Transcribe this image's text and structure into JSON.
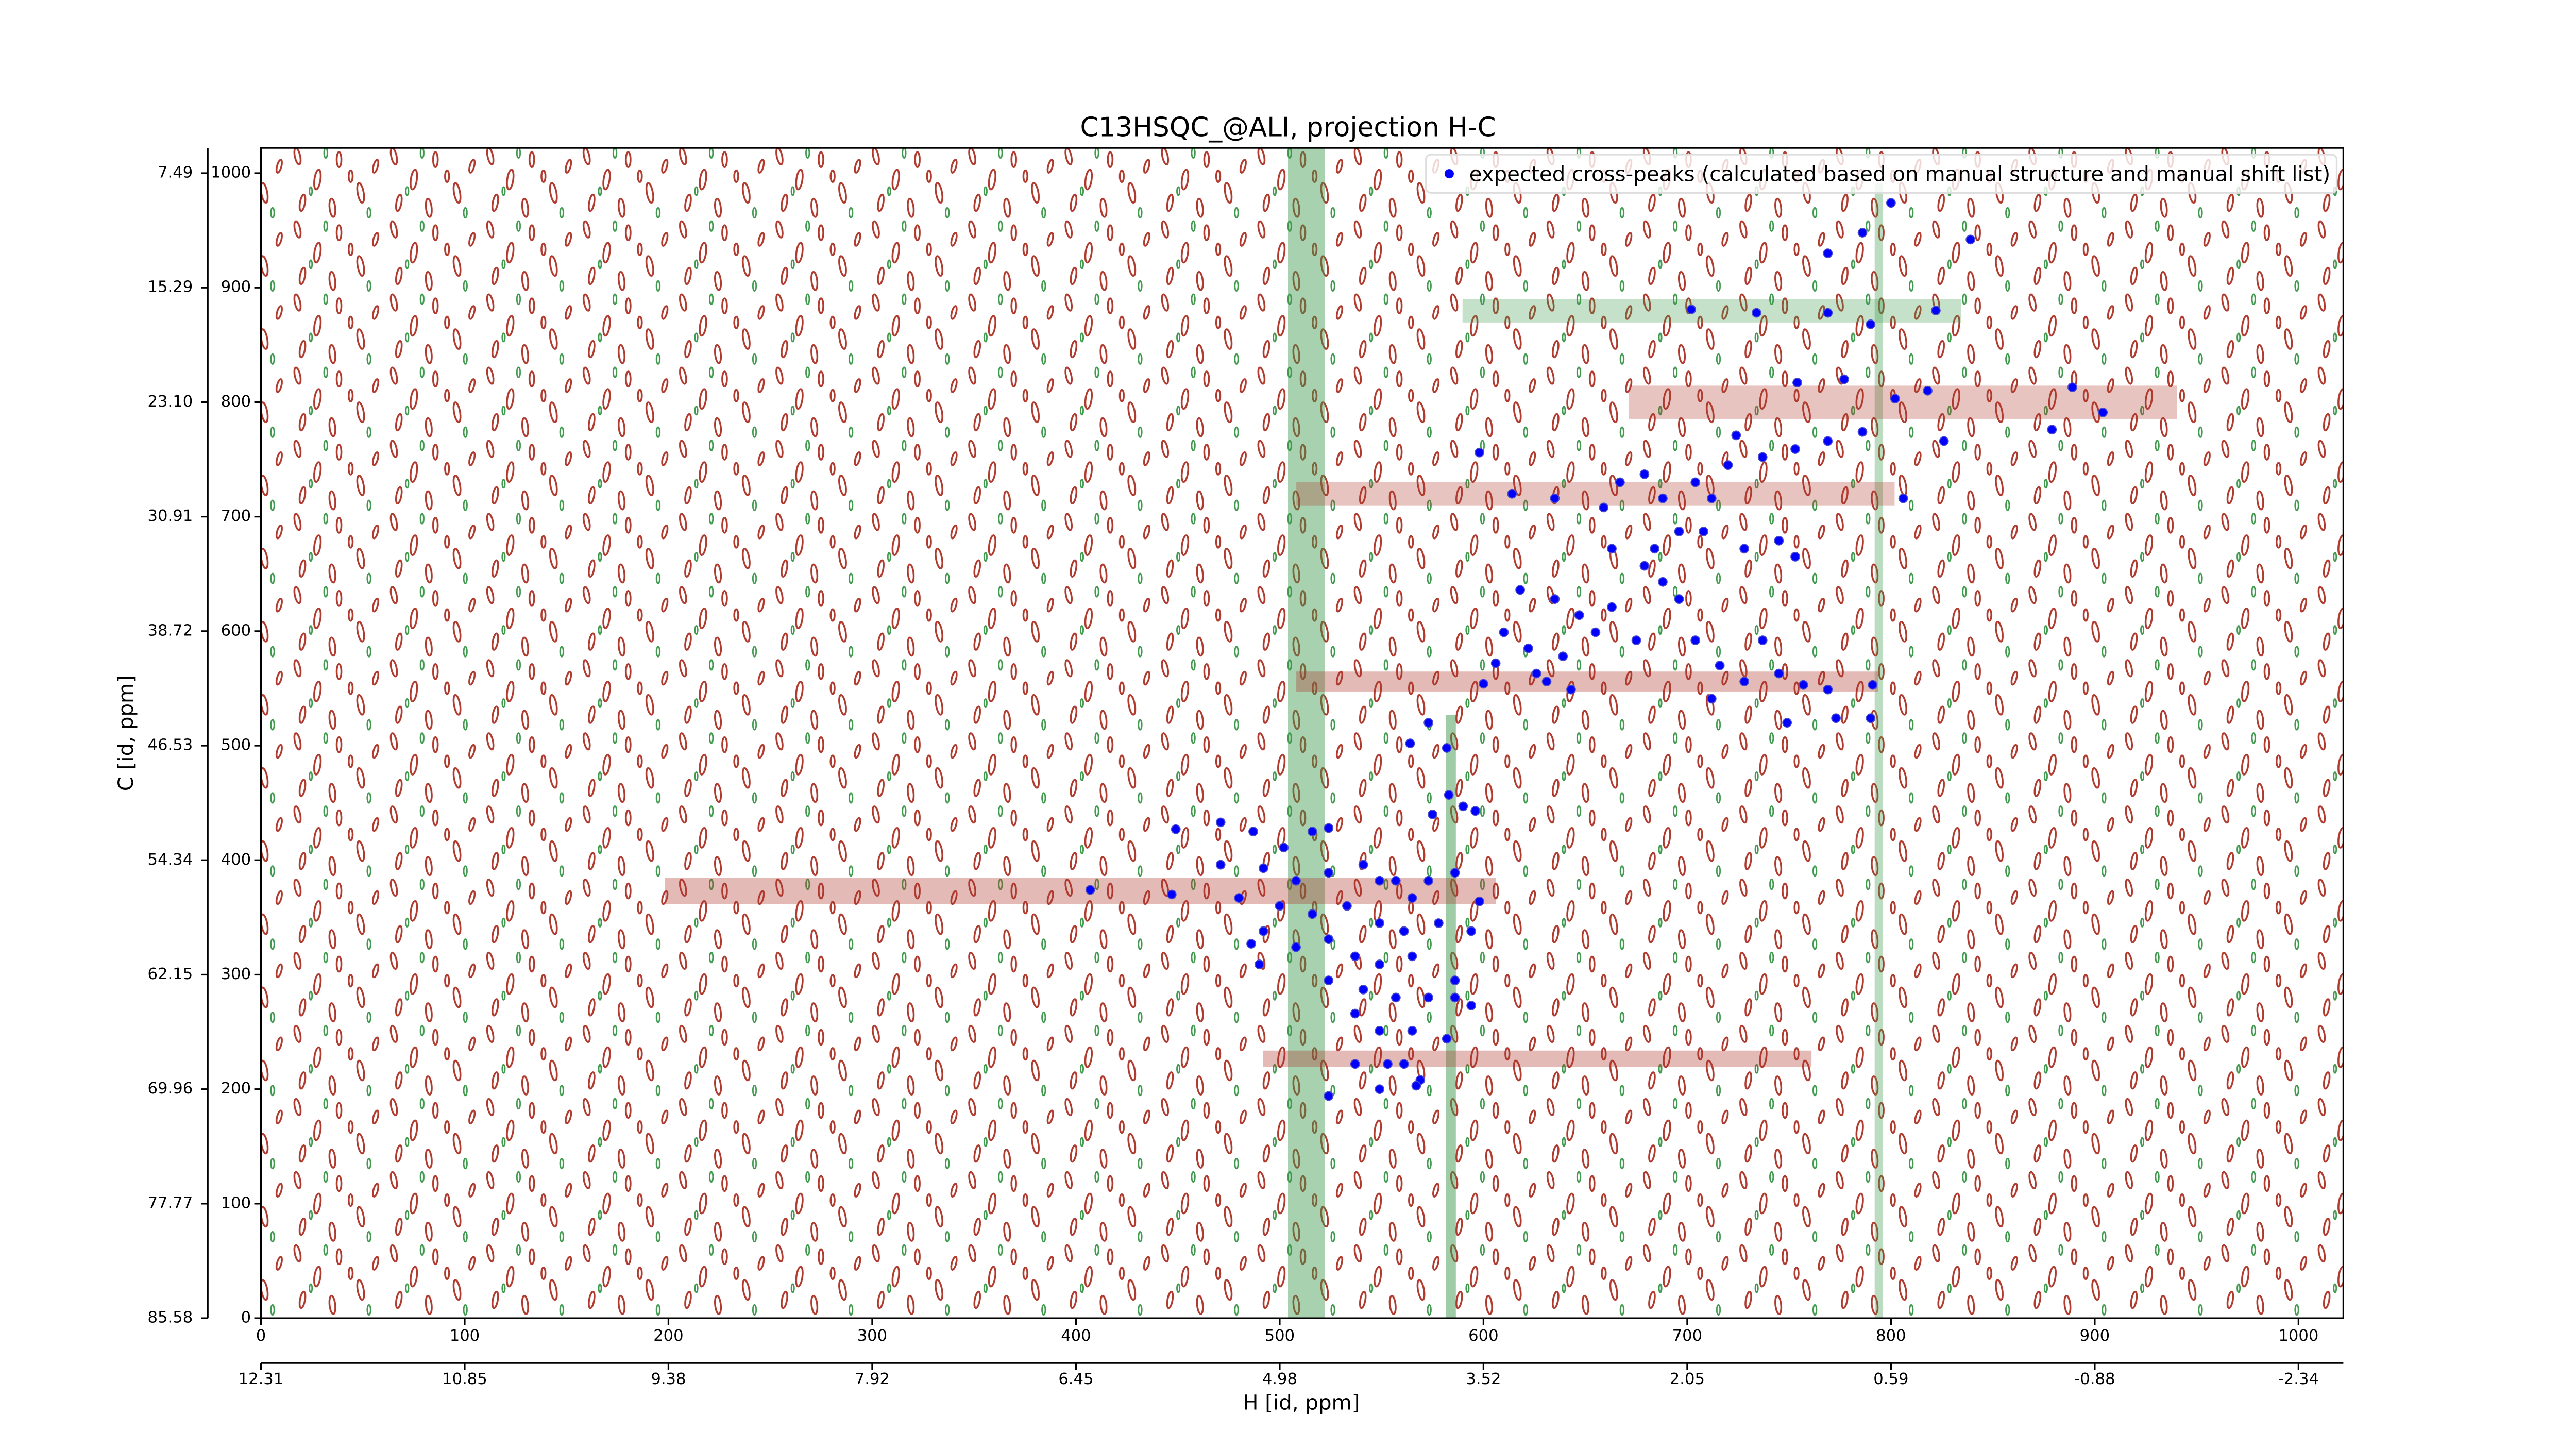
{
  "chart_data": {
    "type": "scatter",
    "title": "C13HSQC_@ALI, projection H-C",
    "xlabel": "H [id, ppm]",
    "ylabel": "C [id, ppm]",
    "xlim": [
      0,
      1022
    ],
    "ylim": [
      0,
      1022
    ],
    "xticks": [
      0,
      100,
      200,
      300,
      400,
      500,
      600,
      700,
      800,
      900,
      1000
    ],
    "yticks": [
      0,
      100,
      200,
      300,
      400,
      500,
      600,
      700,
      800,
      900,
      1000
    ],
    "x2ticks": [
      {
        "value": 0,
        "label": "12.31"
      },
      {
        "value": 100,
        "label": "10.85"
      },
      {
        "value": 200,
        "label": "9.38"
      },
      {
        "value": 300,
        "label": "7.92"
      },
      {
        "value": 400,
        "label": "6.45"
      },
      {
        "value": 500,
        "label": "4.98"
      },
      {
        "value": 600,
        "label": "3.52"
      },
      {
        "value": 700,
        "label": "2.05"
      },
      {
        "value": 800,
        "label": "0.59"
      },
      {
        "value": 900,
        "label": "-0.88"
      },
      {
        "value": 1000,
        "label": "-2.34"
      }
    ],
    "y2ticks": [
      {
        "value": 1000,
        "label": "7.49"
      },
      {
        "value": 900,
        "label": "15.29"
      },
      {
        "value": 800,
        "label": "23.10"
      },
      {
        "value": 700,
        "label": "30.91"
      },
      {
        "value": 600,
        "label": "38.72"
      },
      {
        "value": 500,
        "label": "46.53"
      },
      {
        "value": 400,
        "label": "54.34"
      },
      {
        "value": 300,
        "label": "62.15"
      },
      {
        "value": 200,
        "label": "69.96"
      },
      {
        "value": 100,
        "label": "77.77"
      },
      {
        "value": 0,
        "label": "85.58"
      }
    ],
    "legend": "upper right",
    "series": [
      {
        "name": "expected cross-peaks (calculated based on manual structure and manual shift list)",
        "color": "#0000ff",
        "x": [
          839,
          800,
          769,
          786,
          702,
          734,
          822,
          769,
          790,
          754,
          777,
          802,
          818,
          889,
          904,
          879,
          826,
          598,
          614,
          635,
          659,
          667,
          679,
          688,
          704,
          720,
          737,
          753,
          769,
          786,
          724,
          712,
          696,
          684,
          679,
          688,
          696,
          708,
          728,
          745,
          753,
          806,
          663,
          618,
          635,
          647,
          663,
          610,
          622,
          639,
          655,
          675,
          631,
          643,
          626,
          704,
          716,
          728,
          745,
          757,
          769,
          749,
          773,
          790,
          791,
          737,
          600,
          606,
          712,
          573,
          564,
          582,
          583,
          590,
          596,
          575,
          449,
          471,
          487,
          516,
          524,
          502,
          471,
          492,
          508,
          524,
          541,
          549,
          557,
          565,
          573,
          586,
          598,
          500,
          516,
          533,
          549,
          561,
          578,
          594,
          407,
          447,
          480,
          492,
          508,
          524,
          537,
          549,
          565,
          486,
          490,
          524,
          541,
          557,
          573,
          586,
          594,
          537,
          549,
          565,
          582,
          561,
          569,
          553,
          549,
          537,
          524,
          567,
          586
        ],
        "y": [
          942,
          974,
          930,
          948,
          881,
          878,
          880,
          878,
          868,
          817,
          820,
          803,
          810,
          813,
          791,
          776,
          766,
          756,
          720,
          716,
          708,
          730,
          737,
          716,
          730,
          745,
          752,
          759,
          766,
          774,
          771,
          716,
          687,
          672,
          657,
          643,
          628,
          687,
          672,
          679,
          665,
          716,
          672,
          636,
          628,
          614,
          621,
          599,
          585,
          578,
          599,
          592,
          556,
          549,
          563,
          592,
          570,
          556,
          563,
          553,
          549,
          520,
          524,
          524,
          553,
          592,
          554,
          572,
          541,
          520,
          502,
          498,
          457,
          447,
          443,
          440,
          427,
          433,
          425,
          425,
          428,
          411,
          396,
          393,
          382,
          389,
          396,
          382,
          382,
          367,
          382,
          389,
          364,
          360,
          353,
          360,
          345,
          338,
          345,
          338,
          374,
          370,
          367,
          338,
          324,
          331,
          316,
          309,
          316,
          327,
          309,
          295,
          287,
          280,
          280,
          295,
          273,
          266,
          251,
          251,
          244,
          222,
          208,
          222,
          200,
          222,
          194,
          203,
          280
        ]
      }
    ]
  }
}
